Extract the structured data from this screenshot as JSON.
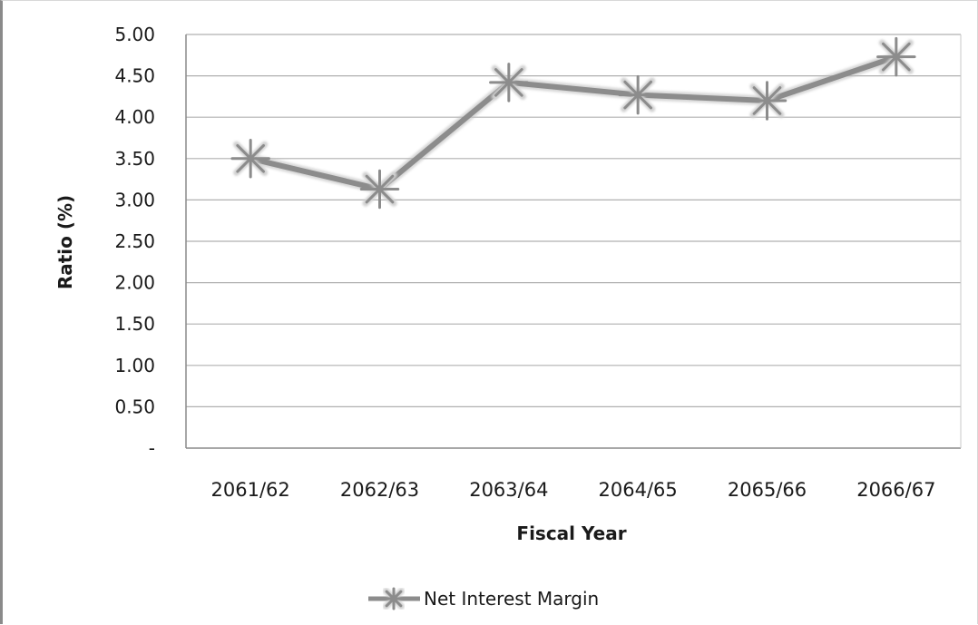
{
  "chart_data": {
    "type": "line",
    "title": "",
    "xlabel": "Fiscal Year",
    "ylabel": "Ratio (%)",
    "categories": [
      "2061/62",
      "2062/63",
      "2063/64",
      "2064/65",
      "2065/66",
      "2066/67"
    ],
    "y_ticks": [
      "-",
      "0.50",
      "1.00",
      "1.50",
      "2.00",
      "2.50",
      "3.00",
      "3.50",
      "4.00",
      "4.50",
      "5.00"
    ],
    "ylim": [
      0,
      5
    ],
    "grid": true,
    "legend_position": "bottom",
    "series": [
      {
        "name": "Net Interest Margin",
        "values": [
          3.5,
          3.13,
          4.42,
          4.27,
          4.2,
          4.73
        ],
        "color": "#8c8c8c",
        "marker": "star"
      }
    ]
  }
}
